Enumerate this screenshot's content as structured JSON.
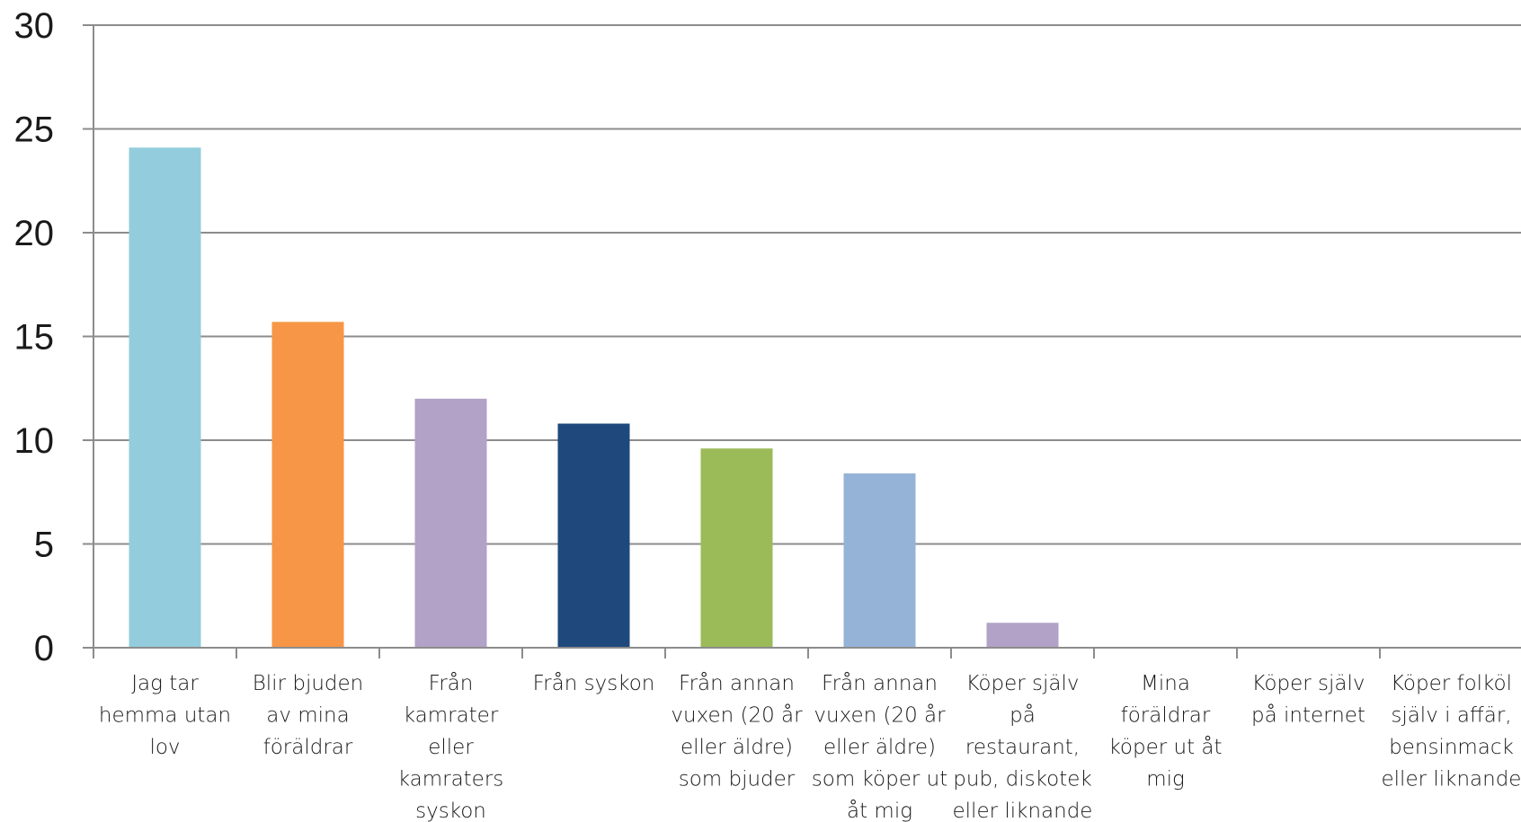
{
  "chart_data": {
    "type": "bar",
    "categories": [
      [
        "Jag tar",
        "hemma utan",
        "lov"
      ],
      [
        "Blir bjuden",
        "av mina",
        "föräldrar"
      ],
      [
        "Från",
        "kamrater",
        "eller",
        "kamraters",
        "syskon"
      ],
      [
        "Från syskon"
      ],
      [
        "Från annan",
        "vuxen (20 år",
        "eller äldre)",
        "som bjuder"
      ],
      [
        "Från annan",
        "vuxen (20 år",
        "eller äldre)",
        "som köper ut",
        "åt mig"
      ],
      [
        "Köper själv",
        "på",
        "restaurant,",
        "pub, diskotek",
        "eller liknande"
      ],
      [
        "Mina",
        "föräldrar",
        "köper ut åt",
        "mig"
      ],
      [
        "Köper själv",
        "på internet"
      ],
      [
        "Köper folköl",
        "själv i affär,",
        "bensinmack",
        "eller liknande"
      ]
    ],
    "values": [
      24.1,
      15.7,
      12.0,
      10.8,
      9.6,
      8.4,
      1.2,
      0,
      0,
      0
    ],
    "colors": [
      "#93cddd",
      "#f79646",
      "#b2a2c7",
      "#1f497d",
      "#9bbb59",
      "#95b3d7",
      "#b2a2c7",
      "#93cddd",
      "#f79646",
      "#b2a2c7"
    ],
    "ylim": [
      0,
      30
    ],
    "yticks": [
      "0",
      "5",
      "10",
      "15",
      "20",
      "25",
      "30"
    ],
    "grid": true,
    "legend": "none"
  }
}
